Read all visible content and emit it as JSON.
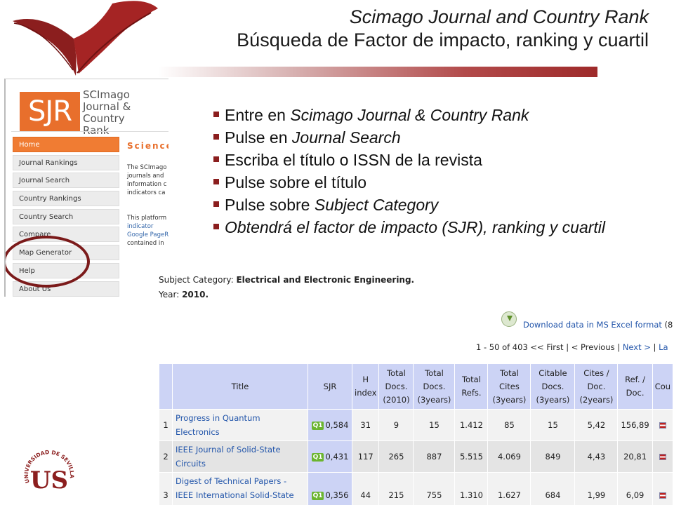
{
  "slide": {
    "title_line1": "Scimago Journal and Country Rank",
    "title_line2": "Búsqueda de Factor de impacto, ranking y cuartil",
    "accent_color": "#8b1e1e"
  },
  "sjr_site": {
    "logo_text": "SJR",
    "brand_line1": "SCImago",
    "brand_line2": "Journal & Country",
    "brand_line3": "Rank",
    "nav": [
      "Home",
      "Journal Rankings",
      "Journal Search",
      "Country Rankings",
      "Country Search",
      "Compare",
      "Map Generator",
      "Help",
      "About Us"
    ],
    "section_heading": "Science",
    "intro_lines": [
      "The SCImago",
      "journals and",
      "information c",
      "indicators ca"
    ],
    "platform_lines": [
      "This platform",
      "indicator",
      "Google PageR",
      "contained in"
    ],
    "brand_color": "#e86f2c"
  },
  "bullets": [
    {
      "pre": "Entre en ",
      "it": "Scimago Journal & Country Rank",
      "post": ""
    },
    {
      "pre": "Pulse en ",
      "it": "Journal Search",
      "post": ""
    },
    {
      "pre": "Escriba el título o ISSN de la revista",
      "it": "",
      "post": ""
    },
    {
      "pre": "Pulse sobre el título",
      "it": "",
      "post": ""
    },
    {
      "pre": "Pulse sobre ",
      "it": "Subject Category",
      "post": ""
    },
    {
      "pre": "",
      "it": "Obtendrá el factor de impacto (SJR), ranking y cuartil",
      "post": ""
    }
  ],
  "results": {
    "subject_label": "Subject Category: ",
    "subject_value": "Electrical and Electronic Engineering.",
    "year_label": "Year: ",
    "year_value": "2010.",
    "download_text": "Download data in MS Excel format",
    "download_suffix": " (8",
    "pager_range": "1 - 50 of 403 << First | < Previous | ",
    "pager_next": "Next >",
    "pager_sep": " | ",
    "pager_last": "La",
    "columns": [
      "",
      "Title",
      "SJR",
      "H index",
      "Total Docs. (2010)",
      "Total Docs. (3years)",
      "Total Refs.",
      "Total Cites (3years)",
      "Citable Docs. (3years)",
      "Cites / Doc. (2years)",
      "Ref. / Doc.",
      "Cou"
    ],
    "quartile": "Q1",
    "rows": [
      {
        "rank": "1",
        "title": "Progress in Quantum Electronics",
        "sjr": "0,584",
        "h": "31",
        "docs2010": "9",
        "docs3y": "15",
        "refs": "1.412",
        "cites3y": "85",
        "citable3y": "15",
        "citesdoc": "5,42",
        "refdoc": "156,89"
      },
      {
        "rank": "2",
        "title": "IEEE Journal of Solid-State Circuits",
        "sjr": "0,431",
        "h": "117",
        "docs2010": "265",
        "docs3y": "887",
        "refs": "5.515",
        "cites3y": "4.069",
        "citable3y": "849",
        "citesdoc": "4,43",
        "refdoc": "20,81"
      },
      {
        "rank": "3",
        "title": "Digest of Technical Papers - IEEE International Solid-State Circuits Conference",
        "sjr": "0,356",
        "h": "44",
        "docs2010": "215",
        "docs3y": "755",
        "refs": "1.310",
        "cites3y": "1.627",
        "citable3y": "684",
        "citesdoc": "1,99",
        "refdoc": "6,09"
      }
    ]
  },
  "university": {
    "ring_text": "UNIVERSIDAD DE SEVILLA",
    "monogram": "US"
  }
}
